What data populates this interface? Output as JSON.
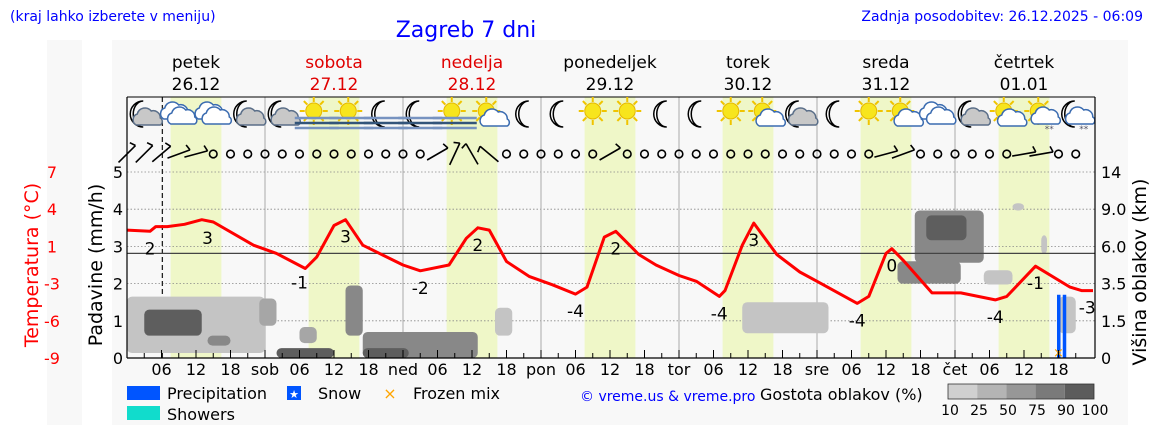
{
  "header": {
    "location_hint": "(kraj lahko izberete v meniju)",
    "title": "Zagreb 7 dni",
    "updated": "Zadnja posodobitev: 26.12.2025 - 06:09"
  },
  "colors": {
    "link_blue": "#0000ff",
    "temperature": "#ff0000",
    "weekend": "#e00000",
    "daylight_band": "#eff7c8",
    "precipitation": "#0055ff",
    "showers": "#11dccc",
    "frozen_mix": "#ffa500",
    "plot_bg": "#f8f8f8"
  },
  "days": [
    {
      "name": "petek",
      "date": "26.12",
      "weekend": false
    },
    {
      "name": "sobota",
      "date": "27.12",
      "weekend": true
    },
    {
      "name": "nedelja",
      "date": "28.12",
      "weekend": true
    },
    {
      "name": "ponedeljek",
      "date": "29.12",
      "weekend": false
    },
    {
      "name": "torek",
      "date": "30.12",
      "weekend": false
    },
    {
      "name": "sreda",
      "date": "31.12",
      "weekend": false
    },
    {
      "name": "četrtek",
      "date": "01.01",
      "weekend": false
    }
  ],
  "legend": {
    "precipitation": "Precipitation",
    "snow": "Snow",
    "frozen_mix": "Frozen mix",
    "showers": "Showers",
    "copyright": "© vreme.us & vreme.pro",
    "cloud_density_title": "Gostota oblakov (%)",
    "cloud_density_levels": [
      "10",
      "25",
      "50",
      "75",
      "90",
      "100"
    ]
  },
  "chart_data": {
    "type": "line",
    "xlim": [
      "2025-12-26T00:00",
      "2026-01-02T00:00"
    ],
    "now_marker": "2025-12-26T06:09",
    "daylight": {
      "sunrise": "07:35",
      "sunset": "16:25"
    },
    "x_tick_labels": [
      "06",
      "12",
      "18",
      "sob",
      "06",
      "12",
      "18",
      "ned",
      "06",
      "12",
      "18",
      "pon",
      "06",
      "12",
      "18",
      "tor",
      "06",
      "12",
      "18",
      "sre",
      "06",
      "12",
      "18",
      "čet",
      "06",
      "12",
      "18"
    ],
    "left_axis_precip": {
      "label": "Padavine (mm/h)",
      "ticks": [
        "0",
        "1",
        "2",
        "3",
        "4",
        "5"
      ],
      "ylim": [
        0,
        5
      ]
    },
    "left_axis_temp": {
      "label": "Temperatura (°C)",
      "ticks": [
        "-9",
        "-6",
        "-3",
        "1",
        "4",
        "7"
      ],
      "ylim": [
        -9,
        7
      ]
    },
    "right_axis_cloud": {
      "label": "Višina oblakov (km)",
      "ticks": [
        "0",
        "1.5",
        "3.5",
        "6.0",
        "9.0",
        "14"
      ]
    },
    "grid": true,
    "temperature": [
      [
        "2025-12-26T00:00",
        2.0
      ],
      [
        "2025-12-26T04:00",
        1.9
      ],
      [
        "2025-12-26T05:00",
        2.3
      ],
      [
        "2025-12-26T07:00",
        2.3
      ],
      [
        "2025-12-26T10:00",
        2.5
      ],
      [
        "2025-12-26T13:00",
        2.9
      ],
      [
        "2025-12-26T15:00",
        2.7
      ],
      [
        "2025-12-26T22:00",
        0.7
      ],
      [
        "2025-12-27T02:00",
        0.0
      ],
      [
        "2025-12-27T07:00",
        -1.3
      ],
      [
        "2025-12-27T09:00",
        -0.3
      ],
      [
        "2025-12-27T12:00",
        2.4
      ],
      [
        "2025-12-27T14:00",
        2.9
      ],
      [
        "2025-12-27T17:00",
        0.7
      ],
      [
        "2025-12-28T00:00",
        -1.0
      ],
      [
        "2025-12-28T03:00",
        -1.5
      ],
      [
        "2025-12-28T08:00",
        -1.0
      ],
      [
        "2025-12-28T11:00",
        1.3
      ],
      [
        "2025-12-28T13:00",
        2.2
      ],
      [
        "2025-12-28T15:00",
        2.0
      ],
      [
        "2025-12-28T18:00",
        -0.7
      ],
      [
        "2025-12-28T22:00",
        -2.0
      ],
      [
        "2025-12-29T02:00",
        -2.7
      ],
      [
        "2025-12-29T06:00",
        -3.5
      ],
      [
        "2025-12-29T08:00",
        -2.9
      ],
      [
        "2025-12-29T11:00",
        1.4
      ],
      [
        "2025-12-29T13:00",
        1.9
      ],
      [
        "2025-12-29T17:00",
        -0.1
      ],
      [
        "2025-12-29T20:00",
        -1.0
      ],
      [
        "2025-12-30T00:00",
        -1.9
      ],
      [
        "2025-12-30T03:00",
        -2.4
      ],
      [
        "2025-12-30T07:00",
        -3.7
      ],
      [
        "2025-12-30T08:00",
        -3.2
      ],
      [
        "2025-12-30T11:00",
        0.7
      ],
      [
        "2025-12-30T13:00",
        2.6
      ],
      [
        "2025-12-30T17:00",
        -0.1
      ],
      [
        "2025-12-30T21:00",
        -1.6
      ],
      [
        "2025-12-31T00:00",
        -2.4
      ],
      [
        "2025-12-31T07:00",
        -4.3
      ],
      [
        "2025-12-31T09:00",
        -3.7
      ],
      [
        "2025-12-31T12:00",
        0.0
      ],
      [
        "2025-12-31T13:00",
        0.4
      ],
      [
        "2025-12-31T15:00",
        -0.6
      ],
      [
        "2025-12-31T20:00",
        -3.4
      ],
      [
        "2026-01-01T01:00",
        -3.4
      ],
      [
        "2026-01-01T07:00",
        -4.0
      ],
      [
        "2026-01-01T09:00",
        -3.7
      ],
      [
        "2026-01-01T14:00",
        -1.1
      ],
      [
        "2026-01-01T20:00",
        -2.9
      ],
      [
        "2026-01-01T22:00",
        -3.2
      ],
      [
        "2026-01-02T00:00",
        -3.2
      ]
    ],
    "temperature_labels": [
      {
        "t": "2025-12-26T04:00",
        "v": "2"
      },
      {
        "t": "2025-12-26T14:00",
        "v": "3"
      },
      {
        "t": "2025-12-27T06:00",
        "v": "-1"
      },
      {
        "t": "2025-12-27T14:00",
        "v": "3"
      },
      {
        "t": "2025-12-28T03:00",
        "v": "-2"
      },
      {
        "t": "2025-12-28T13:00",
        "v": "2"
      },
      {
        "t": "2025-12-29T06:00",
        "v": "-4"
      },
      {
        "t": "2025-12-29T13:00",
        "v": "2"
      },
      {
        "t": "2025-12-30T07:00",
        "v": "-4"
      },
      {
        "t": "2025-12-30T13:00",
        "v": "3"
      },
      {
        "t": "2025-12-31T07:00",
        "v": "-4"
      },
      {
        "t": "2025-12-31T13:00",
        "v": "0"
      },
      {
        "t": "2026-01-01T07:00",
        "v": "-4"
      },
      {
        "t": "2026-01-01T14:00",
        "v": "-1"
      },
      {
        "t": "2026-01-01T23:00",
        "v": "-3"
      }
    ],
    "precipitation": [
      {
        "t": "2026-01-01T18:00",
        "mm_h": 1.7,
        "type": "precipitation"
      },
      {
        "t": "2026-01-01T19:00",
        "mm_h": 1.7,
        "type": "precipitation"
      }
    ],
    "frozen_mix": [
      "2026-01-01T18:00"
    ],
    "cloud_cover": [
      {
        "start": "2025-12-26T00:00",
        "end": "2025-12-27T00:00",
        "base_km": 0.2,
        "top_km": 2.8,
        "density": 25
      },
      {
        "start": "2025-12-26T03:00",
        "end": "2025-12-26T13:00",
        "base_km": 0.9,
        "top_km": 2.1,
        "density": 90
      },
      {
        "start": "2025-12-26T14:00",
        "end": "2025-12-26T18:00",
        "base_km": 0.5,
        "top_km": 0.9,
        "density": 75
      },
      {
        "start": "2025-12-26T23:00",
        "end": "2025-12-27T02:00",
        "base_km": 1.3,
        "top_km": 2.7,
        "density": 50
      },
      {
        "start": "2025-12-27T14:00",
        "end": "2025-12-27T17:00",
        "base_km": 0.9,
        "top_km": 3.4,
        "density": 75
      },
      {
        "start": "2025-12-27T06:00",
        "end": "2025-12-27T09:00",
        "base_km": 0.6,
        "top_km": 1.25,
        "density": 50
      },
      {
        "start": "2025-12-27T02:00",
        "end": "2025-12-27T12:00",
        "base_km": 0.0,
        "top_km": 0.4,
        "density": 90
      },
      {
        "start": "2025-12-27T17:00",
        "end": "2025-12-28T13:00",
        "base_km": 0.0,
        "top_km": 1.05,
        "density": 75
      },
      {
        "start": "2025-12-27T17:00",
        "end": "2025-12-28T01:00",
        "base_km": 0.0,
        "top_km": 0.4,
        "density": 90
      },
      {
        "start": "2025-12-28T16:00",
        "end": "2025-12-28T19:00",
        "base_km": 0.9,
        "top_km": 2.2,
        "density": 25
      },
      {
        "start": "2025-12-30T11:00",
        "end": "2025-12-31T02:00",
        "base_km": 1.0,
        "top_km": 2.5,
        "density": 25
      },
      {
        "start": "2025-12-31T17:00",
        "end": "2026-01-01T05:00",
        "base_km": 4.9,
        "top_km": 8.9,
        "density": 75
      },
      {
        "start": "2025-12-31T19:00",
        "end": "2026-01-01T02:00",
        "base_km": 6.5,
        "top_km": 8.5,
        "density": 90
      },
      {
        "start": "2025-12-31T14:00",
        "end": "2026-01-01T01:00",
        "base_km": 3.5,
        "top_km": 5.0,
        "density": 75
      },
      {
        "start": "2026-01-01T05:00",
        "end": "2026-01-01T10:00",
        "base_km": 3.45,
        "top_km": 4.4,
        "density": 25
      },
      {
        "start": "2026-01-01T10:00",
        "end": "2026-01-01T12:00",
        "base_km": 8.9,
        "top_km": 9.8,
        "density": 25
      },
      {
        "start": "2026-01-01T15:00",
        "end": "2026-01-01T16:00",
        "base_km": 5.5,
        "top_km": 6.9,
        "density": 25
      },
      {
        "start": "2026-01-01T18:00",
        "end": "2026-01-01T21:00",
        "base_km": 1.0,
        "top_km": 2.8,
        "density": 25
      }
    ],
    "wind_from_deg": [
      45,
      45,
      50,
      70,
      75,
      0,
      0,
      0,
      0,
      0,
      0,
      0,
      0,
      0,
      0,
      0,
      0,
      0,
      60,
      25,
      330,
      310,
      0,
      0,
      0,
      0,
      0,
      0,
      60,
      0,
      0,
      0,
      0,
      0,
      0,
      0,
      0,
      0,
      0,
      0,
      0,
      0,
      0,
      0,
      75,
      70,
      0,
      0,
      0,
      0,
      0,
      0,
      80,
      80,
      0,
      0
    ],
    "icons": [
      "moon-cloud",
      "cloud",
      "cloud",
      "moon-cloud",
      "moon-cloud",
      "sun-fog",
      "sun-fog",
      "moon-fog",
      "moon-fog",
      "sun-fog",
      "sun-cloud",
      "moon",
      "moon",
      "sun",
      "sun",
      "moon",
      "moon",
      "sun",
      "sun-cloud",
      "moon-cloud",
      "moon",
      "sun",
      "sun-cloud",
      "cloud",
      "moon-cloud",
      "sun-cloud",
      "sun-cloud-snow",
      "moon-cloud-snow"
    ]
  }
}
